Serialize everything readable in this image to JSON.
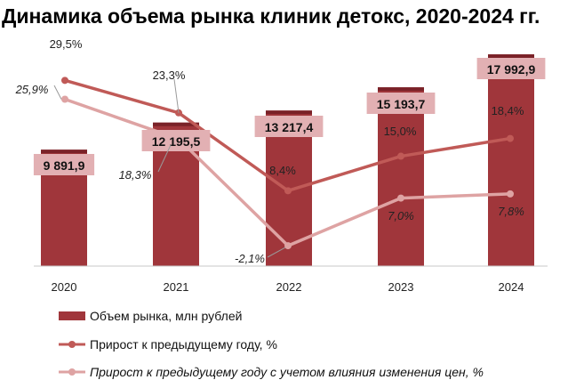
{
  "colors": {
    "bar": "#a0363b",
    "bar_top": "#7a2228",
    "label_box": "#e2b0b3",
    "series1": "#c05a57",
    "series2": "#dea3a3",
    "axis": "#c9c9c9"
  },
  "chart_data": {
    "type": "bar",
    "title": "Динамика объема рынка клиник детокс, 2020-2024 гг.",
    "categories": [
      "2020",
      "2021",
      "2022",
      "2023",
      "2024"
    ],
    "series": [
      {
        "name": "Объем рынка, млн рублей",
        "kind": "bar",
        "values": [
          9891.9,
          12195.5,
          13217.4,
          15193.7,
          17992.9
        ],
        "labels": [
          "9 891,9",
          "12 195,5",
          "13 217,4",
          "15 193,7",
          "17 992,9"
        ]
      },
      {
        "name": "Прирост к предыдущему году, %",
        "kind": "line",
        "values": [
          29.5,
          23.3,
          8.4,
          15.0,
          18.4
        ],
        "labels": [
          "29,5%",
          "23,3%",
          "8,4%",
          "15,0%",
          "18,4%"
        ]
      },
      {
        "name": "Прирост к предыдущему году с учетом влияния изменения цен, %",
        "kind": "line",
        "values": [
          25.9,
          18.3,
          -2.1,
          7.0,
          7.8
        ],
        "labels": [
          "25,9%",
          "18,3%",
          "-2,1%",
          "7,0%",
          "7,8%"
        ]
      }
    ],
    "bar_ylim": [
      0,
      18000
    ],
    "line_ylim": [
      -6,
      35
    ],
    "grid": false,
    "legend_position": "bottom"
  }
}
